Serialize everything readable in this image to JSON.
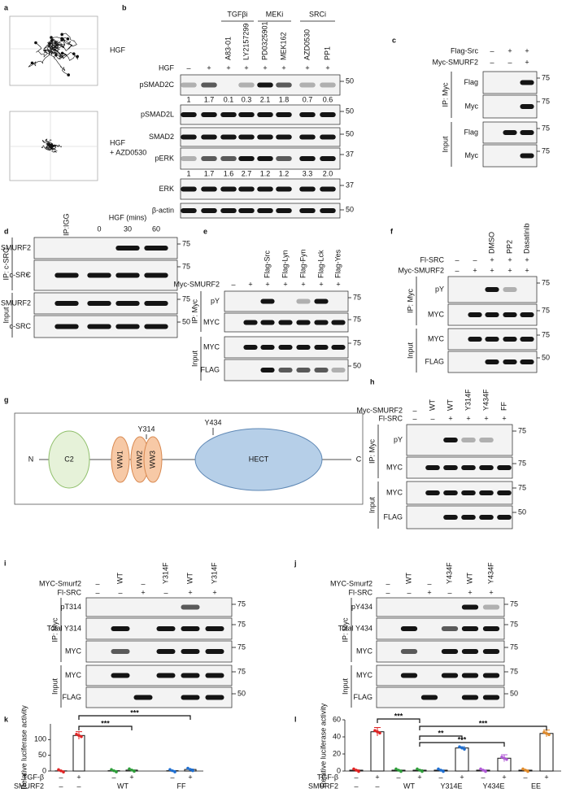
{
  "panels": {
    "a": {
      "letter": "a",
      "labels": [
        "HGF",
        "HGF",
        "+ AZD0530"
      ]
    },
    "b": {
      "letter": "b",
      "groups": [
        "TGFβi",
        "MEKi",
        "SRCi"
      ],
      "lanes": [
        "A83-01",
        "LY2157299",
        "PD0325901",
        "MEK162",
        "AZD0530",
        "PP1"
      ],
      "conditions": [
        {
          "label": "HGF",
          "signs": [
            "–",
            "+",
            "+",
            "+",
            "+",
            "+",
            "+",
            "+"
          ]
        }
      ],
      "blots": [
        {
          "label": "pSMAD2C",
          "marker": 50
        },
        {
          "label": "pSMAD2L",
          "marker": 50
        },
        {
          "label": "SMAD2",
          "marker": 50
        },
        {
          "label": "pERK",
          "marker": 37
        },
        {
          "label": "ERK",
          "marker": 37
        },
        {
          "label": "β-actin",
          "marker": 50
        }
      ],
      "quant": [
        [
          "1",
          "1.7",
          "0.1",
          "0.3",
          "2.1",
          "1.8",
          "0.7",
          "0.6"
        ],
        [
          "1",
          "1.7",
          "1.6",
          "2.7",
          "1.2",
          "1.2",
          "3.3",
          "2.0"
        ]
      ]
    },
    "c": {
      "letter": "c",
      "conditions": [
        {
          "label": "Flag-Src",
          "signs": [
            "–",
            "+",
            "+"
          ]
        },
        {
          "label": "Myc-SMURF2",
          "signs": [
            "–",
            "–",
            "+"
          ]
        }
      ],
      "sections": [
        "IP: Myc",
        "Input"
      ],
      "blots": [
        {
          "label": "Flag",
          "marker": 75
        },
        {
          "label": "Myc",
          "marker": 75
        },
        {
          "label": "Flag",
          "marker": 75
        },
        {
          "label": "Myc",
          "marker": 75
        }
      ]
    },
    "d": {
      "letter": "d",
      "lanes": [
        "IP:IGG"
      ],
      "time_label": "HGF (mins)",
      "times": [
        0,
        30,
        60
      ],
      "sections": [
        "IP: c-SRC",
        "Input"
      ],
      "asterisk": "*",
      "blots": [
        {
          "label": "SMURF2",
          "marker": 75
        },
        {
          "label": "c-SRC",
          "marker": 75
        },
        {
          "label": "SMURF2",
          "marker": 75
        },
        {
          "label": "c-SRC",
          "marker": 50
        }
      ]
    },
    "e": {
      "letter": "e",
      "conditions": [
        {
          "label": "Myc-SMURF2",
          "signs": [
            "–",
            "+",
            "+",
            "+",
            "+",
            "+",
            "+"
          ]
        }
      ],
      "lanes": [
        "Flag-Src",
        "Flag-Lyn",
        "Flag-Fyn",
        "Flag-Lck",
        "Flag-Yes"
      ],
      "sections": [
        "IP: Myc",
        "Input"
      ],
      "blots": [
        {
          "label": "pY",
          "marker": 75
        },
        {
          "label": "MYC",
          "marker": 75
        },
        {
          "label": "MYC",
          "marker": 75
        },
        {
          "label": "FLAG",
          "marker": 50
        }
      ]
    },
    "f": {
      "letter": "f",
      "conditions": [
        {
          "label": "Fl-SRC",
          "signs": [
            "–",
            "–",
            "+",
            "+",
            "+"
          ]
        },
        {
          "label": "Myc-SMURF2",
          "signs": [
            "–",
            "+",
            "+",
            "+",
            "+"
          ]
        }
      ],
      "lanes": [
        "DMSO",
        "PP2",
        "Dasatinib"
      ],
      "sections": [
        "IP: Myc",
        "Input"
      ],
      "blots": [
        {
          "label": "pY",
          "marker": 75
        },
        {
          "label": "MYC",
          "marker": 75
        },
        {
          "label": "MYC",
          "marker": 75
        },
        {
          "label": "FLAG",
          "marker": 50
        }
      ]
    },
    "g": {
      "letter": "g",
      "n_term": "N",
      "c_term": "C",
      "domains": [
        "C2",
        "WW1",
        "WW2",
        "WW3",
        "HECT"
      ],
      "sites": [
        "Y314",
        "Y434"
      ],
      "site_colors": [
        "#e02424",
        "#2e9e3a"
      ]
    },
    "h": {
      "letter": "h",
      "conditions": [
        {
          "label": "Myc-SMURF2",
          "signs": [
            "–",
            "WT",
            "WT",
            "Y314F",
            "Y434F",
            "FF"
          ]
        },
        {
          "label": "Fl-SRC",
          "signs": [
            "–",
            "–",
            "+",
            "+",
            "+",
            "+"
          ]
        }
      ],
      "sections": [
        "IP: Myc",
        "Input"
      ],
      "blots": [
        {
          "label": "pY",
          "marker": 75
        },
        {
          "label": "MYC",
          "marker": 75
        },
        {
          "label": "MYC",
          "marker": 75
        },
        {
          "label": "FLAG",
          "marker": 50
        }
      ]
    },
    "i": {
      "letter": "i",
      "conditions": [
        {
          "label": "MYC-Smurf2",
          "signs": [
            "–",
            "WT",
            "–",
            "Y314F",
            "WT",
            "Y314F"
          ]
        },
        {
          "label": "Fl-SRC",
          "signs": [
            "–",
            "–",
            "+",
            "–",
            "+",
            "+"
          ]
        }
      ],
      "sections": [
        "IP: Myc",
        "Input"
      ],
      "blots": [
        {
          "label": "pT314",
          "marker": 75
        },
        {
          "label": "Total Y314",
          "marker": 75
        },
        {
          "label": "MYC",
          "marker": 75
        },
        {
          "label": "MYC",
          "marker": 75
        },
        {
          "label": "FLAG",
          "marker": 50
        }
      ]
    },
    "j": {
      "letter": "j",
      "conditions": [
        {
          "label": "MYC-Smurf2",
          "signs": [
            "–",
            "WT",
            "–",
            "Y434F",
            "WT",
            "Y434F"
          ]
        },
        {
          "label": "Fl-SRC",
          "signs": [
            "–",
            "–",
            "+",
            "–",
            "+",
            "+"
          ]
        }
      ],
      "sections": [
        "IP: Myc",
        "Input"
      ],
      "blots": [
        {
          "label": "pY434",
          "marker": 75
        },
        {
          "label": "Total Y434",
          "marker": 75
        },
        {
          "label": "MYC",
          "marker": 75
        },
        {
          "label": "MYC",
          "marker": 75
        },
        {
          "label": "FLAG",
          "marker": 50
        }
      ]
    },
    "k": {
      "letter": "k",
      "type": "bar",
      "y_label": "Relative luciferase activity",
      "ylim": [
        0,
        150
      ],
      "yticks": [
        0,
        50,
        100
      ],
      "values": [
        0.5,
        113,
        1,
        3,
        1,
        5
      ],
      "errors": [
        0.3,
        12,
        0.5,
        1,
        0.5,
        1.5
      ],
      "conditions": [
        {
          "label": "TGF-β",
          "values": [
            "–",
            "+",
            "–",
            "+",
            "–",
            "+"
          ]
        },
        {
          "label": "SMURF2",
          "values": [
            "–",
            "–",
            "WT",
            "FF"
          ]
        }
      ],
      "significance": [
        "***",
        "***"
      ]
    },
    "l": {
      "letter": "l",
      "type": "bar",
      "y_label": "Relative luciferase activity",
      "ylim": [
        0,
        60
      ],
      "yticks": [
        0,
        20,
        40,
        60
      ],
      "values": [
        1,
        46,
        1,
        1,
        1,
        27,
        1,
        15,
        1,
        44
      ],
      "errors": [
        0.4,
        5,
        0.3,
        0.5,
        0.3,
        1.5,
        0.3,
        4,
        0.3,
        4
      ],
      "conditions": [
        {
          "label": "TGF-β",
          "values": [
            "–",
            "+",
            "–",
            "+",
            "–",
            "+",
            "–",
            "+",
            "–",
            "+"
          ]
        },
        {
          "label": "SMURF2",
          "values": [
            "–",
            "–",
            "WT",
            "Y314E",
            "Y434E",
            "EE"
          ]
        }
      ],
      "significance": [
        "***",
        "***",
        "**",
        "***"
      ]
    }
  }
}
